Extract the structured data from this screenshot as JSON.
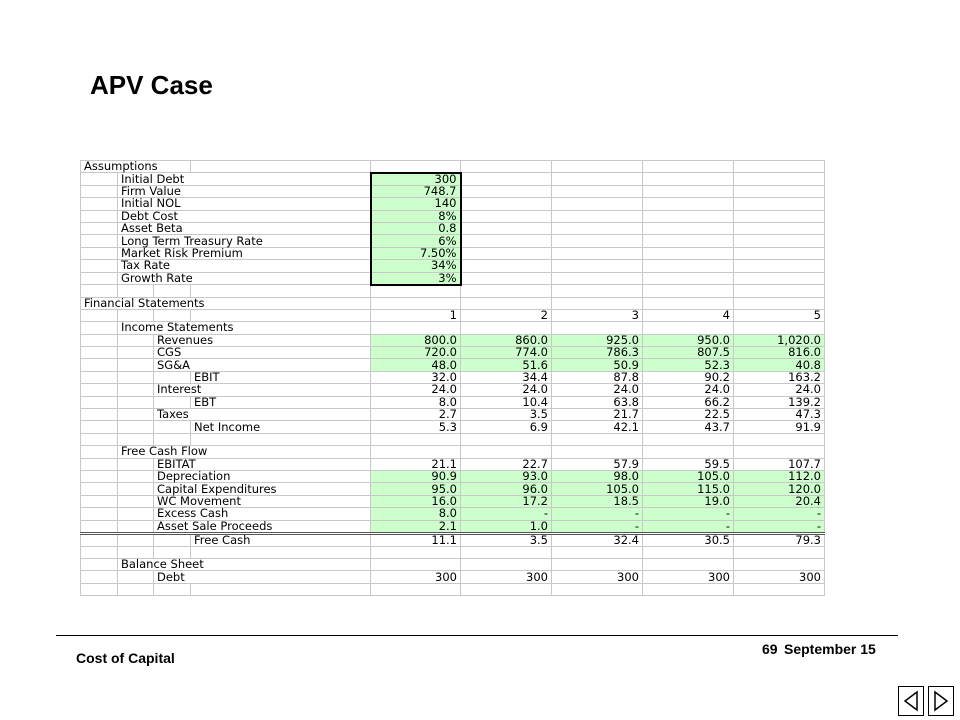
{
  "slide": {
    "title": "APV Case"
  },
  "assumptions": {
    "header": "Assumptions",
    "items": [
      {
        "label": "Initial Debt",
        "value": "300"
      },
      {
        "label": "Firm Value",
        "value": "748.7"
      },
      {
        "label": "Initial NOL",
        "value": "140"
      },
      {
        "label": "Debt Cost",
        "value": "8%"
      },
      {
        "label": "Asset Beta",
        "value": "0.8"
      },
      {
        "label": "Long Term Treasury Rate",
        "value": "6%"
      },
      {
        "label": "Market Risk Premium",
        "value": "7.50%"
      },
      {
        "label": "Tax Rate",
        "value": "34%"
      },
      {
        "label": "Growth Rate",
        "value": "3%"
      }
    ]
  },
  "financials": {
    "header": "Financial Statements",
    "years": [
      "1",
      "2",
      "3",
      "4",
      "5"
    ],
    "income": {
      "header": "Income Statements",
      "rows": [
        {
          "label": "Revenues",
          "indent": 2,
          "green": true,
          "values": [
            "800.0",
            "860.0",
            "925.0",
            "950.0",
            "1,020.0"
          ]
        },
        {
          "label": "CGS",
          "indent": 2,
          "green": true,
          "values": [
            "720.0",
            "774.0",
            "786.3",
            "807.5",
            "816.0"
          ]
        },
        {
          "label": "SG&A",
          "indent": 2,
          "green": true,
          "values": [
            "48.0",
            "51.6",
            "50.9",
            "52.3",
            "40.8"
          ]
        },
        {
          "label": "EBIT",
          "indent": 3,
          "green": false,
          "values": [
            "32.0",
            "34.4",
            "87.8",
            "90.2",
            "163.2"
          ]
        },
        {
          "label": "Interest",
          "indent": 2,
          "green": false,
          "values": [
            "24.0",
            "24.0",
            "24.0",
            "24.0",
            "24.0"
          ]
        },
        {
          "label": "EBT",
          "indent": 3,
          "green": false,
          "values": [
            "8.0",
            "10.4",
            "63.8",
            "66.2",
            "139.2"
          ]
        },
        {
          "label": "Taxes",
          "indent": 2,
          "green": false,
          "values": [
            "2.7",
            "3.5",
            "21.7",
            "22.5",
            "47.3"
          ]
        },
        {
          "label": "Net Income",
          "indent": 3,
          "green": false,
          "values": [
            "5.3",
            "6.9",
            "42.1",
            "43.7",
            "91.9"
          ]
        }
      ]
    },
    "fcf": {
      "header": "Free Cash Flow",
      "rows": [
        {
          "label": "EBITAT",
          "indent": 2,
          "green": false,
          "values": [
            "21.1",
            "22.7",
            "57.9",
            "59.5",
            "107.7"
          ]
        },
        {
          "label": "Depreciation",
          "indent": 2,
          "green": true,
          "values": [
            "90.9",
            "93.0",
            "98.0",
            "105.0",
            "112.0"
          ]
        },
        {
          "label": "Capital Expenditures",
          "indent": 2,
          "green": true,
          "values": [
            "95.0",
            "96.0",
            "105.0",
            "115.0",
            "120.0"
          ]
        },
        {
          "label": "WC Movement",
          "indent": 2,
          "green": true,
          "values": [
            "16.0",
            "17.2",
            "18.5",
            "19.0",
            "20.4"
          ]
        },
        {
          "label": "Excess Cash",
          "indent": 2,
          "green": true,
          "values": [
            "8.0",
            "-",
            "-",
            "-",
            "-"
          ]
        },
        {
          "label": "Asset Sale Proceeds",
          "indent": 2,
          "green": true,
          "values": [
            "2.1",
            "1.0",
            "-",
            "-",
            "-"
          ]
        },
        {
          "label": "Free Cash",
          "indent": 3,
          "green": false,
          "total": true,
          "values": [
            "11.1",
            "3.5",
            "32.4",
            "30.5",
            "79.3"
          ]
        }
      ]
    },
    "balance": {
      "header": "Balance Sheet",
      "rows": [
        {
          "label": "Debt",
          "indent": 2,
          "green": false,
          "values": [
            "300",
            "300",
            "300",
            "300",
            "300"
          ]
        }
      ]
    }
  },
  "footer": {
    "left": "Cost of Capital",
    "page": "69",
    "date": "September 15"
  },
  "nav": {
    "prev_icon": "previous-slide-icon",
    "next_icon": "next-slide-icon"
  }
}
